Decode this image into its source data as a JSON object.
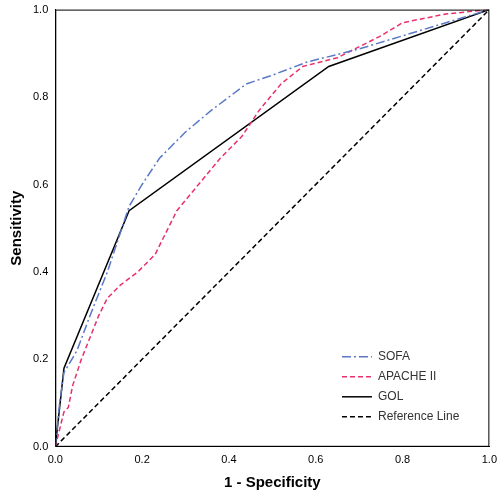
{
  "chart_data": {
    "type": "line",
    "x_label": "1 - Specificity",
    "y_label": "Sensitivity",
    "xlim": [
      0,
      1
    ],
    "ylim": [
      0,
      1
    ],
    "xticks": [
      {
        "value": 0,
        "label": "0.0"
      },
      {
        "value": 0.2,
        "label": "0.2"
      },
      {
        "value": 0.4,
        "label": "0.4"
      },
      {
        "value": 0.6,
        "label": "0.6"
      },
      {
        "value": 0.8,
        "label": "0.8"
      },
      {
        "value": 1,
        "label": "1.0"
      }
    ],
    "yticks": [
      {
        "value": 0,
        "label": "0.0"
      },
      {
        "value": 0.2,
        "label": "0.2"
      },
      {
        "value": 0.4,
        "label": "0.4"
      },
      {
        "value": 0.6,
        "label": "0.6"
      },
      {
        "value": 0.8,
        "label": "0.8"
      },
      {
        "value": 1,
        "label": "1.0"
      }
    ],
    "grid": false,
    "legend": "lower right",
    "series": [
      {
        "name": "SOFA",
        "color": "#5a78c8",
        "line_style": "dashdot",
        "x": [
          0,
          0.01,
          0.02,
          0.05,
          0.08,
          0.12,
          0.17,
          0.2,
          0.24,
          0.3,
          0.36,
          0.44,
          0.5,
          0.58,
          0.7,
          0.8,
          0.9,
          1
        ],
        "values": [
          0,
          0.1,
          0.17,
          0.22,
          0.3,
          0.4,
          0.55,
          0.6,
          0.66,
          0.72,
          0.77,
          0.83,
          0.85,
          0.88,
          0.91,
          0.94,
          0.97,
          1
        ]
      },
      {
        "name": "APACHE II",
        "color": "#e8306a",
        "line_style": "dashed",
        "x": [
          0,
          0.02,
          0.03,
          0.04,
          0.06,
          0.1,
          0.12,
          0.15,
          0.19,
          0.23,
          0.28,
          0.33,
          0.38,
          0.43,
          0.47,
          0.52,
          0.57,
          0.65,
          0.75,
          0.8,
          0.9,
          1
        ],
        "values": [
          0,
          0.08,
          0.09,
          0.14,
          0.2,
          0.3,
          0.34,
          0.37,
          0.4,
          0.44,
          0.54,
          0.6,
          0.66,
          0.71,
          0.77,
          0.83,
          0.87,
          0.89,
          0.94,
          0.97,
          0.99,
          1
        ]
      },
      {
        "name": "GOL",
        "color": "#000000",
        "line_style": "solid",
        "x": [
          0,
          0.02,
          0.17,
          0.63,
          1
        ],
        "values": [
          0,
          0.18,
          0.54,
          0.87,
          1
        ]
      },
      {
        "name": "Reference Line",
        "color": "#000000",
        "line_style": "dashed",
        "x": [
          0,
          1
        ],
        "values": [
          0,
          1
        ]
      }
    ]
  }
}
